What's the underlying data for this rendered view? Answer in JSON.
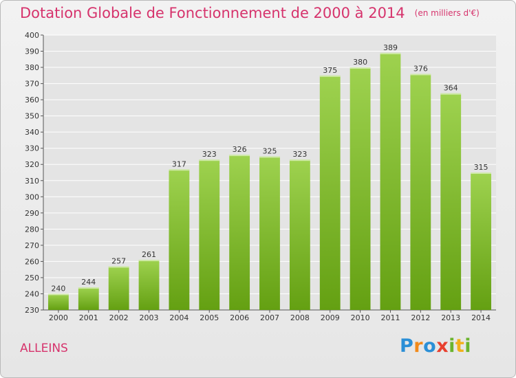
{
  "title": "Dotation Globale de Fonctionnement de 2000 à 2014",
  "unit": "(en milliers d'€)",
  "commune": "ALLEINS",
  "logo": {
    "p1": "P",
    "p2": "r",
    "p3": "o",
    "p4": "x",
    "p5": "i",
    "p6": "t",
    "p7": "i"
  },
  "colors": {
    "bar_top": "#9ed24f",
    "bar_bottom": "#64a012",
    "title": "#d6336c",
    "grid": "#ffffff"
  },
  "chart_data": {
    "type": "bar",
    "categories": [
      "2000",
      "2001",
      "2002",
      "2003",
      "2004",
      "2005",
      "2006",
      "2007",
      "2008",
      "2009",
      "2010",
      "2011",
      "2012",
      "2013",
      "2014"
    ],
    "values": [
      240,
      244,
      257,
      261,
      317,
      323,
      326,
      325,
      323,
      375,
      380,
      389,
      376,
      364,
      315
    ],
    "ylim": [
      230,
      400
    ],
    "ytick_step": 10,
    "grid": true,
    "legend": "none"
  }
}
